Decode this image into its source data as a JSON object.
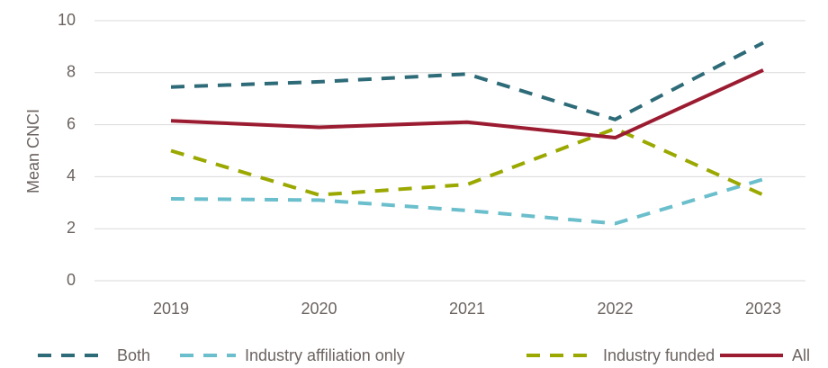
{
  "chart_data": {
    "type": "line",
    "y_label": "Mean CNCI",
    "categories": [
      "2019",
      "2020",
      "2021",
      "2022",
      "2023"
    ],
    "series": [
      {
        "name": "Both",
        "color": "#2e6b78",
        "dashed": true,
        "values": [
          7.45,
          7.65,
          7.95,
          6.2,
          9.15
        ]
      },
      {
        "name": "Industry affiliation only",
        "color": "#6bbfcc",
        "dashed": true,
        "values": [
          3.15,
          3.1,
          2.7,
          2.2,
          3.9
        ]
      },
      {
        "name": "Industry funded",
        "color": "#9aa800",
        "dashed": true,
        "values": [
          5.0,
          3.3,
          3.7,
          5.85,
          3.3
        ]
      },
      {
        "name": "All",
        "color": "#9b1c31",
        "dashed": false,
        "values": [
          6.15,
          5.9,
          6.1,
          5.5,
          8.1
        ]
      }
    ],
    "ylim": [
      0,
      10
    ],
    "yticks": [
      0,
      2,
      4,
      6,
      8,
      10
    ],
    "grid": true,
    "legend": "bottom"
  }
}
